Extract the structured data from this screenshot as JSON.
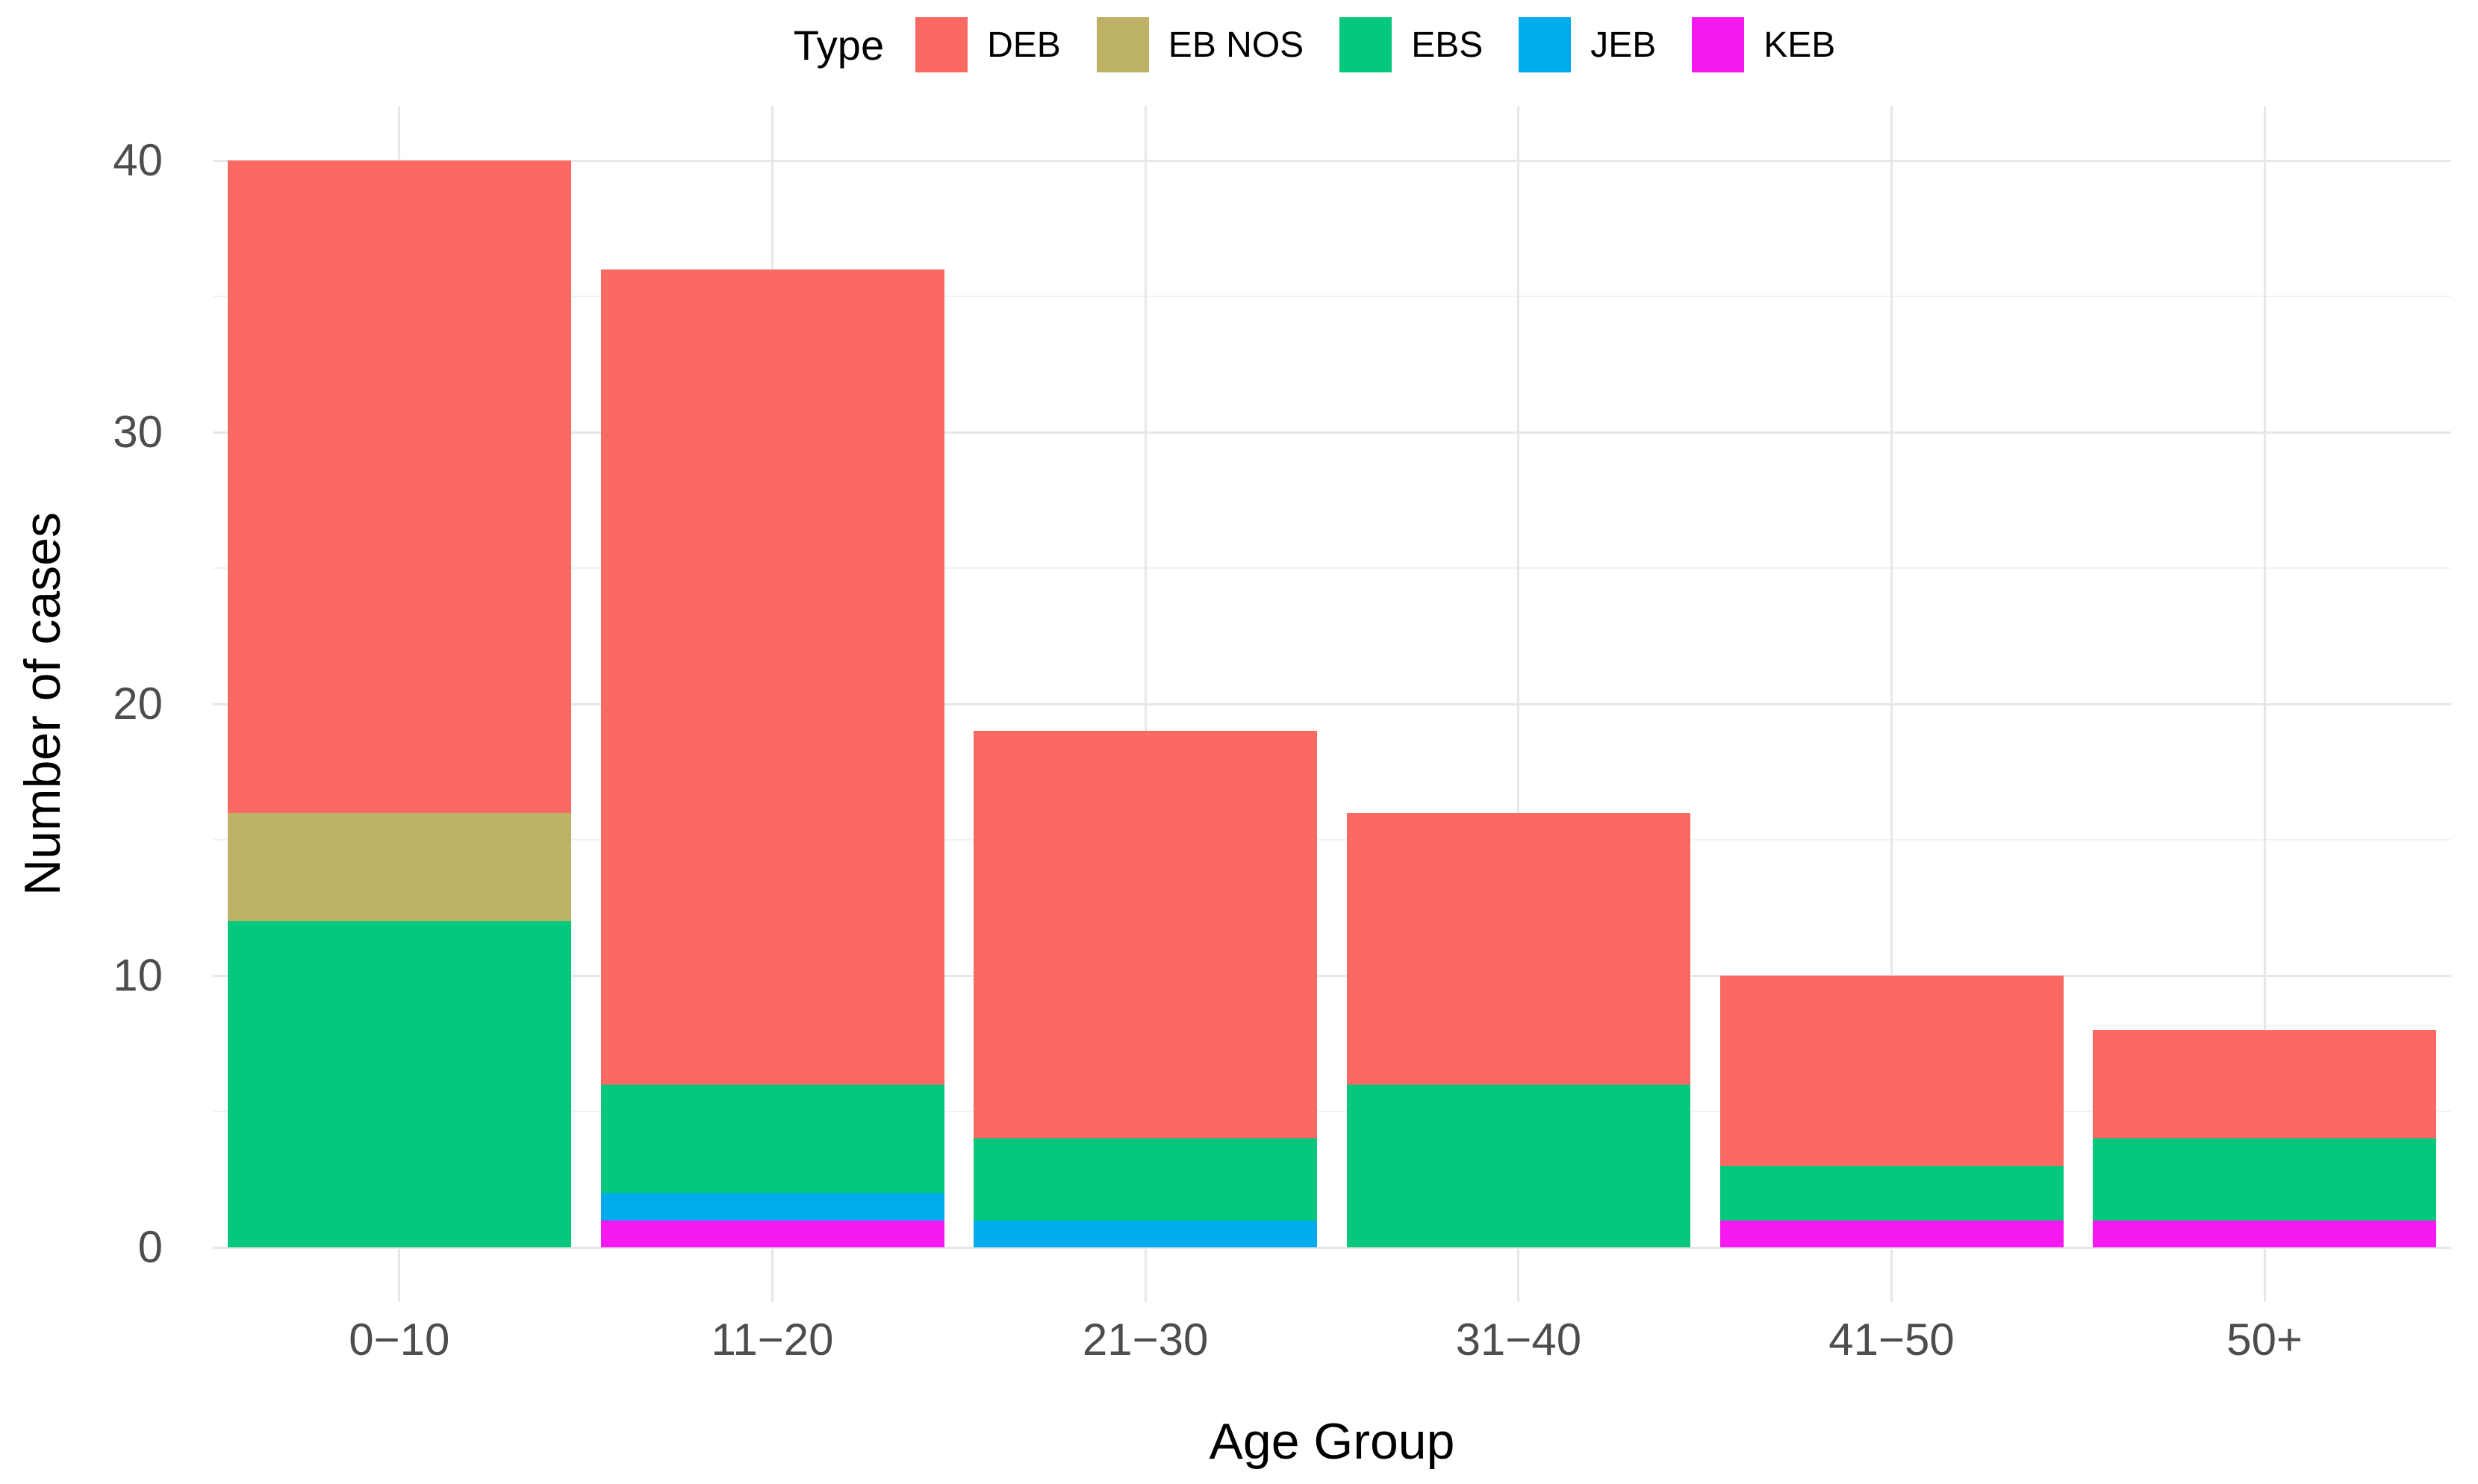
{
  "chart_data": {
    "type": "bar",
    "stacked": true,
    "title": "",
    "xlabel": "Age Group",
    "ylabel": "Number of cases",
    "categories": [
      "0−10",
      "11−20",
      "21−30",
      "31−40",
      "41−50",
      "50+"
    ],
    "ylim": [
      0,
      40
    ],
    "yticks": [
      0,
      10,
      20,
      30,
      40
    ],
    "yticks_minor": [
      5,
      15,
      25,
      35
    ],
    "grid": true,
    "legend_title": "Type",
    "legend_position": "top",
    "stack_order_bottom_to_top": [
      "KEB",
      "JEB",
      "EBS",
      "EB NOS",
      "DEB"
    ],
    "series": [
      {
        "name": "DEB",
        "color": "#FA6A62",
        "values": [
          24,
          30,
          15,
          10,
          7,
          4
        ]
      },
      {
        "name": "EB NOS",
        "color": "#BCB165",
        "values": [
          4,
          0,
          0,
          0,
          0,
          0
        ]
      },
      {
        "name": "EBS",
        "color": "#06C87D",
        "values": [
          12,
          4,
          3,
          6,
          2,
          3
        ]
      },
      {
        "name": "JEB",
        "color": "#00ACEC",
        "values": [
          0,
          1,
          1,
          0,
          0,
          0
        ]
      },
      {
        "name": "KEB",
        "color": "#F71AF0",
        "values": [
          0,
          1,
          0,
          0,
          1,
          1
        ]
      }
    ],
    "bar_totals": [
      40,
      36,
      19,
      16,
      10,
      8
    ]
  },
  "colors": {
    "background": "#FFFFFF",
    "grid_major": "#E7E7E7",
    "grid_minor": "#F2F2F2",
    "tick_label": "#4D4D4D",
    "axis_title": "#000000"
  }
}
